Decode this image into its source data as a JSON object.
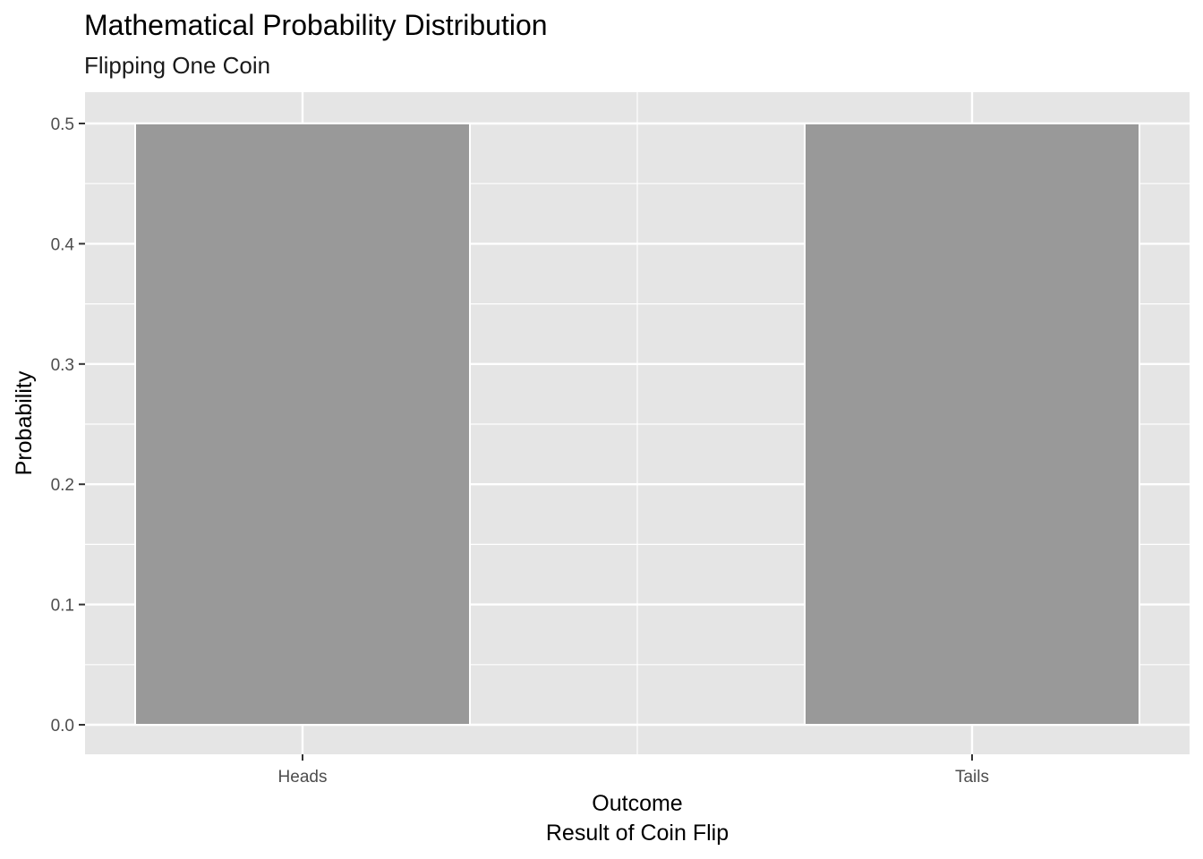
{
  "chart_data": {
    "type": "bar",
    "title": "Mathematical Probability Distribution",
    "subtitle": "Flipping One Coin",
    "xlabel": "Outcome",
    "xlabel_line2": "Result of Coin Flip",
    "ylabel": "Probability",
    "categories": [
      "Heads",
      "Tails"
    ],
    "values": [
      0.5,
      0.5
    ],
    "ylim": [
      0,
      0.5
    ],
    "yticks": [
      0.0,
      0.1,
      0.2,
      0.3,
      0.4,
      0.5
    ],
    "ytick_labels": [
      "0.0",
      "0.1",
      "0.2",
      "0.3",
      "0.4",
      "0.5"
    ],
    "grid": true,
    "legend": "none",
    "colors": {
      "panel_background": "#e5e5e5",
      "bar_fill": "#999999",
      "bar_outline": "#ffffff",
      "grid": "#ffffff",
      "tick_mark": "#333333"
    }
  }
}
